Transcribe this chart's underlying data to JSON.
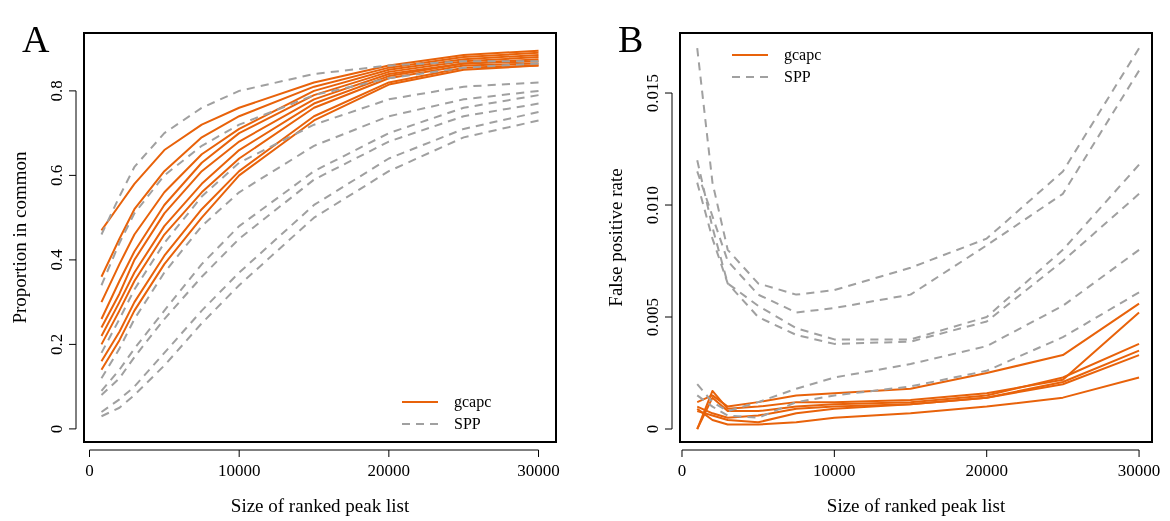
{
  "chart_data": [
    {
      "type": "line",
      "title": "A",
      "xlabel": "Size of ranked peak list",
      "ylabel": "Proportion in common",
      "x": [
        800,
        2000,
        3000,
        5000,
        7500,
        10000,
        15000,
        20000,
        25000,
        30000
      ],
      "xlim": [
        -368,
        31168
      ],
      "ylim": [
        -0.031,
        0.937
      ],
      "xticks": [
        0,
        10000,
        20000,
        30000
      ],
      "yticks": [
        0,
        0.2,
        0.4,
        0.6,
        0.8
      ],
      "grid": false,
      "legend": "bottom right",
      "marker": "none",
      "series": [
        {
          "name": "gcapc",
          "color": "#e8620a",
          "line_style": "solid",
          "values": [
            0.47,
            0.53,
            0.58,
            0.66,
            0.72,
            0.76,
            0.82,
            0.86,
            0.885,
            0.895
          ]
        },
        {
          "color": "#e8620a",
          "line_style": "solid",
          "values": [
            0.36,
            0.45,
            0.52,
            0.61,
            0.69,
            0.74,
            0.81,
            0.855,
            0.88,
            0.89
          ]
        },
        {
          "color": "#e8620a",
          "line_style": "solid",
          "values": [
            0.3,
            0.39,
            0.46,
            0.56,
            0.65,
            0.71,
            0.8,
            0.85,
            0.875,
            0.885
          ]
        },
        {
          "color": "#e8620a",
          "line_style": "solid",
          "values": [
            0.26,
            0.35,
            0.42,
            0.53,
            0.63,
            0.7,
            0.79,
            0.845,
            0.87,
            0.88
          ]
        },
        {
          "color": "#e8620a",
          "line_style": "solid",
          "values": [
            0.24,
            0.32,
            0.4,
            0.51,
            0.61,
            0.68,
            0.78,
            0.84,
            0.865,
            0.875
          ]
        },
        {
          "color": "#e8620a",
          "line_style": "solid",
          "values": [
            0.22,
            0.3,
            0.37,
            0.48,
            0.58,
            0.66,
            0.77,
            0.835,
            0.865,
            0.87
          ]
        },
        {
          "color": "#e8620a",
          "line_style": "solid",
          "values": [
            0.2,
            0.28,
            0.35,
            0.46,
            0.56,
            0.64,
            0.76,
            0.83,
            0.86,
            0.865
          ]
        },
        {
          "color": "#e8620a",
          "line_style": "solid",
          "values": [
            0.16,
            0.23,
            0.3,
            0.41,
            0.52,
            0.61,
            0.74,
            0.82,
            0.855,
            0.86
          ]
        },
        {
          "color": "#e8620a",
          "line_style": "solid",
          "values": [
            0.14,
            0.21,
            0.28,
            0.39,
            0.5,
            0.6,
            0.73,
            0.815,
            0.85,
            0.86
          ]
        },
        {
          "name": "SPP",
          "color": "#a0a0a0",
          "line_style": "dashed",
          "values": [
            0.46,
            0.55,
            0.62,
            0.7,
            0.76,
            0.8,
            0.84,
            0.86,
            0.87,
            0.87
          ]
        },
        {
          "color": "#a0a0a0",
          "line_style": "dashed",
          "values": [
            0.34,
            0.44,
            0.51,
            0.6,
            0.67,
            0.72,
            0.79,
            0.83,
            0.855,
            0.865
          ]
        },
        {
          "color": "#a0a0a0",
          "line_style": "dashed",
          "values": [
            0.18,
            0.26,
            0.33,
            0.44,
            0.55,
            0.63,
            0.72,
            0.78,
            0.81,
            0.82
          ]
        },
        {
          "color": "#a0a0a0",
          "line_style": "dashed",
          "values": [
            0.12,
            0.19,
            0.26,
            0.37,
            0.48,
            0.56,
            0.67,
            0.74,
            0.78,
            0.8
          ]
        },
        {
          "color": "#a0a0a0",
          "line_style": "dashed",
          "values": [
            0.09,
            0.14,
            0.19,
            0.28,
            0.39,
            0.48,
            0.61,
            0.7,
            0.76,
            0.79
          ]
        },
        {
          "color": "#a0a0a0",
          "line_style": "dashed",
          "values": [
            0.08,
            0.12,
            0.17,
            0.26,
            0.36,
            0.45,
            0.59,
            0.68,
            0.74,
            0.77
          ]
        },
        {
          "color": "#a0a0a0",
          "line_style": "dashed",
          "values": [
            0.04,
            0.07,
            0.1,
            0.18,
            0.28,
            0.37,
            0.53,
            0.64,
            0.71,
            0.75
          ]
        },
        {
          "color": "#a0a0a0",
          "line_style": "dashed",
          "values": [
            0.03,
            0.05,
            0.08,
            0.15,
            0.25,
            0.34,
            0.5,
            0.61,
            0.69,
            0.73
          ]
        }
      ]
    },
    {
      "type": "line",
      "title": "B",
      "xlabel": "Size of ranked peak list",
      "ylabel": "False positive rate",
      "x": [
        1000,
        2000,
        3000,
        5000,
        7500,
        10000,
        15000,
        20000,
        25000,
        30000
      ],
      "xlim": [
        -131,
        30850
      ],
      "ylim": [
        -0.00058,
        0.01768
      ],
      "xticks": [
        0,
        10000,
        20000,
        30000
      ],
      "yticks": [
        0,
        0.005,
        {
          "value": 0.01,
          "label": "0.010"
        },
        0.015
      ],
      "grid": false,
      "legend": "top left",
      "marker": "none",
      "series": [
        {
          "name": "gcapc",
          "color": "#e8620a",
          "line_style": "solid",
          "values": [
            0.0012,
            0.0015,
            0.001,
            0.0012,
            0.0015,
            0.0016,
            0.0018,
            0.0025,
            0.0033,
            0.0056
          ]
        },
        {
          "color": "#e8620a",
          "line_style": "solid",
          "values": [
            0,
            0.0017,
            0.0009,
            0.001,
            0.0012,
            0.0012,
            0.0013,
            0.0016,
            0.0022,
            0.0052
          ]
        },
        {
          "color": "#e8620a",
          "line_style": "solid",
          "values": [
            0,
            0.0014,
            0.0008,
            0.0008,
            0.001,
            0.0011,
            0.0012,
            0.0015,
            0.0023,
            0.0038
          ]
        },
        {
          "color": "#e8620a",
          "line_style": "solid",
          "values": [
            0.0008,
            0.0006,
            0.0004,
            0.0003,
            0.0007,
            0.0009,
            0.0011,
            0.0014,
            0.0021,
            0.0035
          ]
        },
        {
          "color": "#e8620a",
          "line_style": "solid",
          "values": [
            0.001,
            0.0007,
            0.0005,
            0.0006,
            0.0009,
            0.001,
            0.0011,
            0.0014,
            0.002,
            0.0033
          ]
        },
        {
          "color": "#e8620a",
          "line_style": "solid",
          "values": [
            0.0009,
            0.0004,
            0.0002,
            0.0002,
            0.0003,
            0.0005,
            0.0007,
            0.001,
            0.0014,
            0.0023
          ]
        },
        {
          "name": "SPP",
          "color": "#a0a0a0",
          "line_style": "dashed",
          "values": [
            0.017,
            0.011,
            0.008,
            0.0065,
            0.006,
            0.0062,
            0.0072,
            0.0085,
            0.0115,
            0.017
          ]
        },
        {
          "color": "#a0a0a0",
          "line_style": "dashed",
          "values": [
            0.0115,
            0.0095,
            0.0075,
            0.006,
            0.0052,
            0.0054,
            0.006,
            0.0082,
            0.0105,
            0.016
          ]
        },
        {
          "color": "#a0a0a0",
          "line_style": "dashed",
          "values": [
            0.012,
            0.009,
            0.0065,
            0.0055,
            0.0045,
            0.004,
            0.004,
            0.005,
            0.008,
            0.0118
          ]
        },
        {
          "color": "#a0a0a0",
          "line_style": "dashed",
          "values": [
            0.011,
            0.0085,
            0.0065,
            0.005,
            0.0042,
            0.0038,
            0.0039,
            0.0048,
            0.0075,
            0.0105
          ]
        },
        {
          "color": "#a0a0a0",
          "line_style": "dashed",
          "values": [
            0.002,
            0.0012,
            0.0008,
            0.0012,
            0.0018,
            0.0023,
            0.0029,
            0.0037,
            0.0055,
            0.008
          ]
        },
        {
          "color": "#a0a0a0",
          "line_style": "dashed",
          "values": [
            0.0015,
            0.001,
            0.0006,
            0.0005,
            0.0012,
            0.0015,
            0.0019,
            0.0026,
            0.0041,
            0.0061
          ]
        }
      ]
    }
  ]
}
